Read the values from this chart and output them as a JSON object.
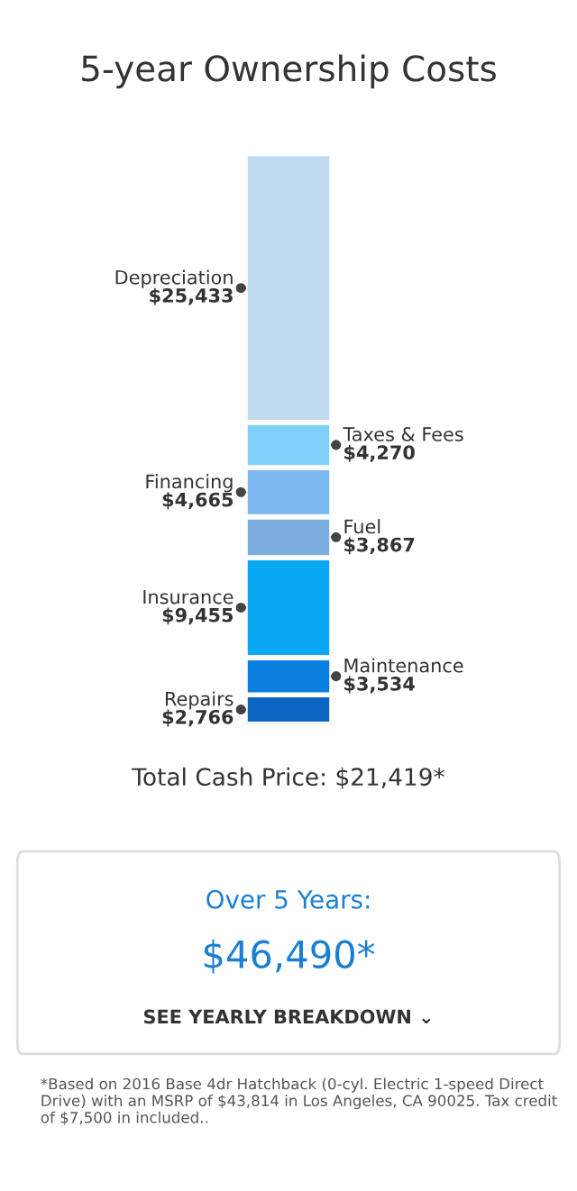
{
  "chart_data": {
    "type": "bar",
    "title": "5-year Ownership Costs",
    "stacked": true,
    "data_labels": true,
    "categories": [
      null
    ],
    "series": [
      {
        "name": "Repairs",
        "color": "#0a66c0",
        "values": [
          2766
        ],
        "value_labels": [
          "$2,766"
        ]
      },
      {
        "name": "Maintenance",
        "color": "#0a7fe0",
        "values": [
          3534
        ],
        "value_labels": [
          "$3,534"
        ]
      },
      {
        "name": "Insurance",
        "color": "#0aa8f5",
        "values": [
          9455
        ],
        "value_labels": [
          "$9,455"
        ]
      },
      {
        "name": "Fuel",
        "color": "#7daee0",
        "values": [
          3867
        ],
        "value_labels": [
          "$3,867"
        ]
      },
      {
        "name": "Financing",
        "color": "#7ab8ef",
        "values": [
          4665
        ],
        "value_labels": [
          "$4,665"
        ]
      },
      {
        "name": "Taxes & Fees",
        "color": "#7fcff8",
        "values": [
          4270
        ],
        "value_labels": [
          "$4,270"
        ]
      },
      {
        "name": "Depreciation",
        "color": "#c0daf0",
        "values": [
          25433
        ],
        "value_labels": [
          "$25,433"
        ]
      }
    ],
    "annotations": [
      "Total Cash Price: $21,419*",
      "Over 5 Years:",
      "$46,490*",
      "SEE YEARLY BREAKDOWN ⌄",
      "*Based on 2016 Base 4dr Hatchback (0-cyl. Electric 1-speed Direct Drive) with an MSRP of $43,814 in Los Angeles, CA 90025. Tax credit of $7,500 in included.."
    ]
  }
}
